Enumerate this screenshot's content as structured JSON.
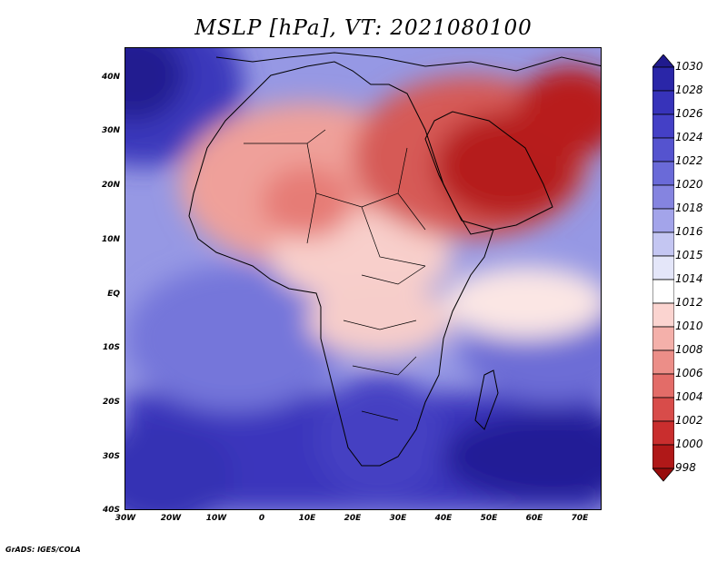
{
  "title": "MSLP [hPa], VT: 2021080100",
  "footer": "GrADS: IGES/COLA",
  "map": {
    "lon_labels": [
      "30W",
      "20W",
      "10W",
      "0",
      "10E",
      "20E",
      "30E",
      "40E",
      "50E",
      "60E",
      "70E"
    ],
    "lat_labels": [
      "40N",
      "30N",
      "20N",
      "10N",
      "EQ",
      "10S",
      "20S",
      "30S",
      "40S"
    ]
  },
  "colorbar": {
    "labels": [
      "1030",
      "1028",
      "1026",
      "1024",
      "1022",
      "1020",
      "1018",
      "1016",
      "1015",
      "1014",
      "1012",
      "1010",
      "1008",
      "1006",
      "1004",
      "1002",
      "1000",
      "998"
    ],
    "colors": [
      "#201a8e",
      "#2a26a8",
      "#3733ba",
      "#4440c6",
      "#5553cf",
      "#6a6ad8",
      "#8584e0",
      "#a3a4ea",
      "#c4c6f2",
      "#e4e6f9",
      "#ffffff",
      "#fbd4d0",
      "#f4b0aa",
      "#ec8e88",
      "#e36c68",
      "#d84c4a",
      "#c92e2e",
      "#b01818",
      "#980c0c"
    ]
  }
}
